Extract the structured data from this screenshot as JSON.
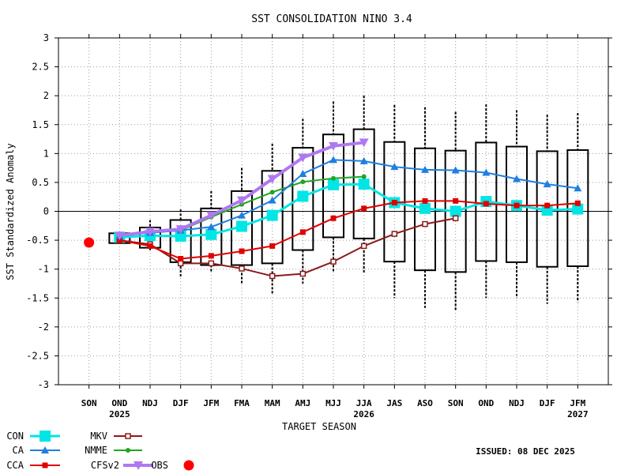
{
  "chart_data": {
    "type": "box",
    "title": "SST CONSOLIDATION NINO 3.4",
    "xlabel": "TARGET SEASON",
    "ylabel": "SST Standardized Anomaly",
    "ylim": [
      -3,
      3
    ],
    "yticks": [
      "3",
      "2.5",
      "2",
      "1.5",
      "1",
      "0.5",
      "0",
      "-0.5",
      "-1",
      "-1.5",
      "-2",
      "-2.5",
      "-3"
    ],
    "categories": [
      "SON",
      "OND",
      "NDJ",
      "DJF",
      "JFM",
      "FMA",
      "MAM",
      "AMJ",
      "MJJ",
      "JJA",
      "JAS",
      "ASO",
      "SON",
      "OND",
      "NDJ",
      "DJF",
      "JFM"
    ],
    "year_labels": [
      {
        "index": 1,
        "text": "2025"
      },
      {
        "index": 9,
        "text": "2026"
      },
      {
        "index": 16,
        "text": "2027"
      }
    ],
    "grid": true,
    "issued": "ISSUED: 08 DEC 2025",
    "boxes": [
      {
        "index": 1,
        "low": -0.55,
        "q1": -0.55,
        "q3": -0.38,
        "high": -0.38
      },
      {
        "index": 2,
        "low": -0.7,
        "q1": -0.63,
        "q3": -0.28,
        "high": -0.15
      },
      {
        "index": 3,
        "low": -1.13,
        "q1": -0.88,
        "q3": -0.15,
        "high": 0.03
      },
      {
        "index": 4,
        "low": -1.05,
        "q1": -0.93,
        "q3": 0.05,
        "high": 0.35
      },
      {
        "index": 5,
        "low": -1.25,
        "q1": -0.93,
        "q3": 0.35,
        "high": 0.75
      },
      {
        "index": 6,
        "low": -1.43,
        "q1": -0.9,
        "q3": 0.7,
        "high": 1.17
      },
      {
        "index": 7,
        "low": -1.25,
        "q1": -0.67,
        "q3": 1.1,
        "high": 1.6
      },
      {
        "index": 8,
        "low": -1.05,
        "q1": -0.45,
        "q3": 1.33,
        "high": 1.9
      },
      {
        "index": 9,
        "low": -1.07,
        "q1": -0.47,
        "q3": 1.42,
        "high": 2.0
      },
      {
        "index": 10,
        "low": -1.5,
        "q1": -0.87,
        "q3": 1.2,
        "high": 1.84
      },
      {
        "index": 11,
        "low": -1.67,
        "q1": -1.02,
        "q3": 1.09,
        "high": 1.8
      },
      {
        "index": 12,
        "low": -1.72,
        "q1": -1.05,
        "q3": 1.05,
        "high": 1.72
      },
      {
        "index": 13,
        "low": -1.5,
        "q1": -0.86,
        "q3": 1.19,
        "high": 1.85
      },
      {
        "index": 14,
        "low": -1.5,
        "q1": -0.88,
        "q3": 1.12,
        "high": 1.75
      },
      {
        "index": 15,
        "low": -1.6,
        "q1": -0.96,
        "q3": 1.04,
        "high": 1.67
      },
      {
        "index": 16,
        "low": -1.57,
        "q1": -0.95,
        "q3": 1.06,
        "high": 1.7
      }
    ],
    "series": [
      {
        "name": "CON",
        "color": "#00e5e5",
        "marker": "square-large",
        "points": [
          [
            1,
            -0.45
          ],
          [
            2,
            -0.42
          ],
          [
            3,
            -0.43
          ],
          [
            4,
            -0.4
          ],
          [
            5,
            -0.26
          ],
          [
            6,
            -0.07
          ],
          [
            7,
            0.26
          ],
          [
            8,
            0.46
          ],
          [
            9,
            0.47
          ],
          [
            10,
            0.15
          ],
          [
            11,
            0.05
          ],
          [
            12,
            0.0
          ],
          [
            13,
            0.17
          ],
          [
            14,
            0.1
          ],
          [
            15,
            0.02
          ],
          [
            16,
            0.04
          ]
        ]
      },
      {
        "name": "CA",
        "color": "#1e7fe0",
        "marker": "triangle",
        "points": [
          [
            1,
            -0.42
          ],
          [
            2,
            -0.37
          ],
          [
            3,
            -0.33
          ],
          [
            4,
            -0.27
          ],
          [
            5,
            -0.07
          ],
          [
            6,
            0.19
          ],
          [
            7,
            0.65
          ],
          [
            8,
            0.89
          ],
          [
            9,
            0.87
          ],
          [
            10,
            0.77
          ],
          [
            11,
            0.72
          ],
          [
            12,
            0.71
          ],
          [
            13,
            0.67
          ],
          [
            14,
            0.56
          ],
          [
            15,
            0.47
          ],
          [
            16,
            0.4
          ]
        ]
      },
      {
        "name": "CCA",
        "color": "#e00000",
        "marker": "square",
        "points": [
          [
            1,
            -0.5
          ],
          [
            2,
            -0.6
          ],
          [
            3,
            -0.82
          ],
          [
            4,
            -0.77
          ],
          [
            5,
            -0.69
          ],
          [
            6,
            -0.6
          ],
          [
            7,
            -0.36
          ],
          [
            8,
            -0.12
          ],
          [
            9,
            0.05
          ],
          [
            10,
            0.15
          ],
          [
            11,
            0.18
          ],
          [
            12,
            0.18
          ],
          [
            13,
            0.13
          ],
          [
            14,
            0.1
          ],
          [
            15,
            0.1
          ],
          [
            16,
            0.14
          ]
        ]
      },
      {
        "name": "MKV",
        "color": "#8b1a1a",
        "marker": "square-open",
        "points": [
          [
            1,
            -0.5
          ],
          [
            2,
            -0.57
          ],
          [
            3,
            -0.9
          ],
          [
            4,
            -0.9
          ],
          [
            5,
            -0.99
          ],
          [
            6,
            -1.12
          ],
          [
            7,
            -1.08
          ],
          [
            8,
            -0.87
          ],
          [
            9,
            -0.6
          ],
          [
            10,
            -0.39
          ],
          [
            11,
            -0.22
          ],
          [
            12,
            -0.12
          ]
        ]
      },
      {
        "name": "NMME",
        "color": "#22a422",
        "marker": "dot",
        "points": [
          [
            1,
            -0.4
          ],
          [
            2,
            -0.37
          ],
          [
            3,
            -0.33
          ],
          [
            4,
            -0.1
          ],
          [
            5,
            0.12
          ],
          [
            6,
            0.33
          ],
          [
            7,
            0.51
          ],
          [
            8,
            0.57
          ],
          [
            9,
            0.6
          ]
        ]
      },
      {
        "name": "CFSv2",
        "color": "#b078f0",
        "marker": "triangle-down",
        "points": [
          [
            1,
            -0.42
          ],
          [
            2,
            -0.35
          ],
          [
            3,
            -0.31
          ],
          [
            4,
            -0.07
          ],
          [
            5,
            0.19
          ],
          [
            6,
            0.56
          ],
          [
            7,
            0.93
          ],
          [
            8,
            1.13
          ],
          [
            9,
            1.19
          ]
        ]
      },
      {
        "name": "OBS",
        "color": "#ff0000",
        "marker": "dot-large",
        "points": [
          [
            0,
            -0.54
          ]
        ]
      }
    ]
  }
}
